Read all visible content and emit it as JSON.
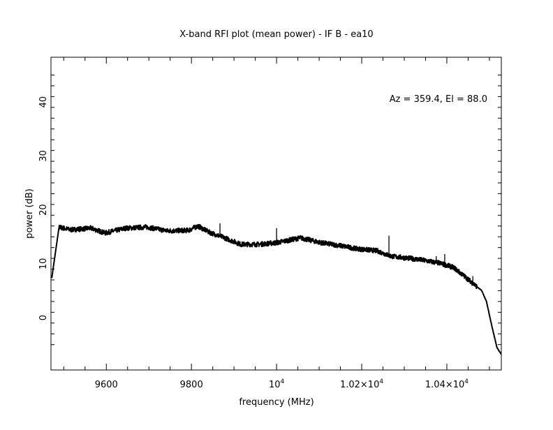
{
  "chart_data": {
    "type": "line",
    "title": "X-band RFI plot (mean power) - IF B - ea10",
    "xlabel": "frequency (MHz)",
    "ylabel": "power (dB)",
    "annotation": "Az = 359.4, El = 88.0",
    "xlim": [
      9470,
      10528
    ],
    "ylim": [
      -9.7,
      48.3
    ],
    "grid": false,
    "x_ticks": [
      {
        "value": 9600,
        "label": "9600"
      },
      {
        "value": 9800,
        "label": "9800"
      },
      {
        "value": 10000,
        "label": "10",
        "exp": "4"
      },
      {
        "value": 10200,
        "label": "1.02×10",
        "exp": "4"
      },
      {
        "value": 10400,
        "label": "1.04×10",
        "exp": "4"
      }
    ],
    "y_ticks": [
      {
        "value": 0,
        "label": "0"
      },
      {
        "value": 10,
        "label": "10"
      },
      {
        "value": 20,
        "label": "20"
      },
      {
        "value": 30,
        "label": "30"
      },
      {
        "value": 40,
        "label": "40"
      }
    ],
    "series": [
      {
        "name": "mean power",
        "x": [
          9472,
          9489,
          9515,
          9564,
          9597,
          9646,
          9695,
          9744,
          9793,
          9815,
          9843,
          9875,
          9916,
          9957,
          10000,
          10056,
          10105,
          10154,
          10187,
          10236,
          10269,
          10334,
          10384,
          10416,
          10441,
          10482,
          10493,
          10507,
          10518,
          10528
        ],
        "y": [
          7.4,
          16.8,
          16.3,
          16.6,
          15.7,
          16.6,
          16.8,
          16.1,
          16.2,
          17.0,
          15.8,
          14.9,
          13.6,
          13.6,
          13.9,
          14.8,
          13.9,
          13.3,
          12.8,
          12.4,
          11.4,
          10.8,
          10.1,
          9.3,
          7.7,
          5.0,
          3.0,
          -2.0,
          -5.6,
          -6.8
        ]
      }
    ],
    "spikes": [
      {
        "x": 9867,
        "y": 17.5
      },
      {
        "x": 10000,
        "y": 16.6
      },
      {
        "x": 10264,
        "y": 15.2
      },
      {
        "x": 10375,
        "y": 11.4
      },
      {
        "x": 10395,
        "y": 11.8
      },
      {
        "x": 10461,
        "y": 7.7
      }
    ]
  }
}
